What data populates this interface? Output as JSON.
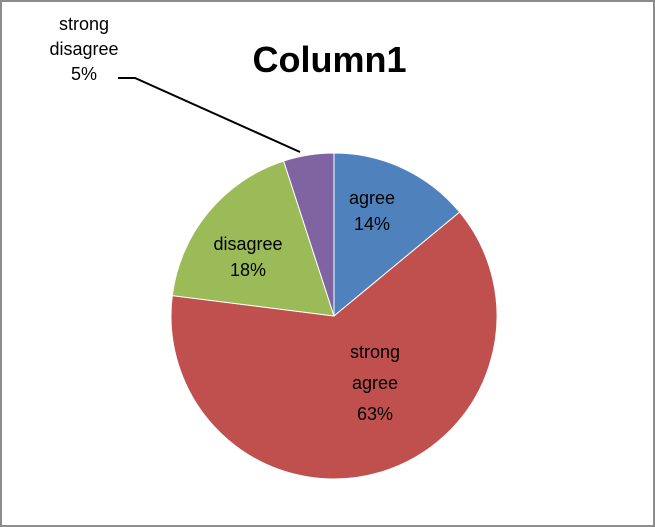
{
  "chart_data": {
    "type": "pie",
    "title": "Column1",
    "categories": [
      "agree",
      "strong agree",
      "disagree",
      "strong disagree"
    ],
    "values": [
      14,
      63,
      18,
      5
    ],
    "labels": [
      [
        "agree",
        "14%"
      ],
      [
        "strong",
        "agree",
        "63%"
      ],
      [
        "disagree",
        "18%"
      ],
      [
        "strong",
        "disagree",
        "5%"
      ]
    ],
    "colors": [
      "#4f81bd",
      "#c0504d",
      "#9bbb59",
      "#8064a2"
    ],
    "start_angle": "12 o'clock",
    "direction": "clockwise",
    "legend": "none"
  }
}
